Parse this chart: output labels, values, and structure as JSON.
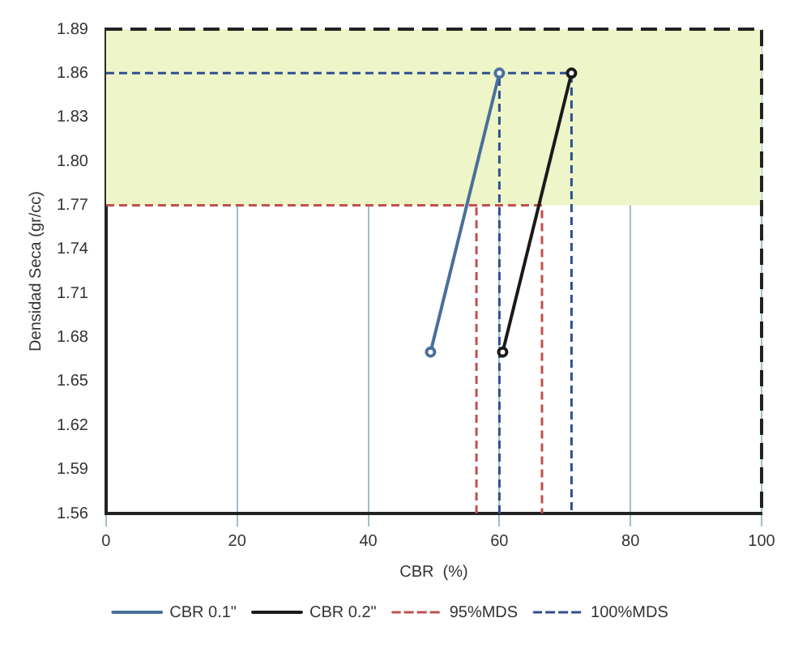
{
  "chart_data": {
    "type": "line",
    "xlabel": "CBR  (%)",
    "ylabel": "Densidad Seca (gr/cc)",
    "xlim": [
      0,
      100
    ],
    "xticks": [
      0,
      20,
      40,
      60,
      80,
      100
    ],
    "ylim": [
      1.56,
      1.89
    ],
    "yticks": [
      {
        "value": 1.56,
        "label": "1.56"
      },
      {
        "value": 1.59,
        "label": "1.59"
      },
      {
        "value": 1.62,
        "label": "1.62"
      },
      {
        "value": 1.65,
        "label": "1.65"
      },
      {
        "value": 1.68,
        "label": "1.68"
      },
      {
        "value": 1.71,
        "label": "1.71"
      },
      {
        "value": 1.74,
        "label": "1.74"
      },
      {
        "value": 1.77,
        "label": "1.77"
      },
      {
        "value": 1.8,
        "label": "1.80"
      },
      {
        "value": 1.83,
        "label": "1.83"
      },
      {
        "value": 1.86,
        "label": "1.86"
      },
      {
        "value": 1.89,
        "label": "1.89"
      }
    ],
    "series": [
      {
        "name": "CBR 0.1\"",
        "color": "#4a6f9a",
        "x": [
          49.5,
          60
        ],
        "values": [
          1.67,
          1.86
        ],
        "marker": "circle",
        "line_style": "solid"
      },
      {
        "name": "CBR 0.2\"",
        "color": "#1a1a1a",
        "x": [
          60.5,
          71
        ],
        "values": [
          1.67,
          1.86
        ],
        "marker": "circle",
        "line_style": "solid"
      },
      {
        "name": "95%MDS",
        "color": "#c0504d",
        "x": [
          0,
          66.5,
          66.5,
          61.5,
          56.5,
          56.5
        ],
        "values": [
          1.77,
          1.77,
          1.56,
          null,
          1.56,
          1.77
        ],
        "marker": "none",
        "line_style": "dashed"
      },
      {
        "name": "100%MDS",
        "color": "#2f4f8f",
        "x": [
          0,
          71,
          71,
          65.5,
          60,
          60
        ],
        "values": [
          1.86,
          1.86,
          1.56,
          null,
          1.56,
          1.86
        ],
        "marker": "none",
        "line_style": "dashed"
      }
    ],
    "bands": [
      {
        "axis": "y",
        "from": 1.77,
        "to": 1.89,
        "color": "#eef5c8"
      }
    ],
    "grid": "x",
    "legend": "bottom"
  }
}
